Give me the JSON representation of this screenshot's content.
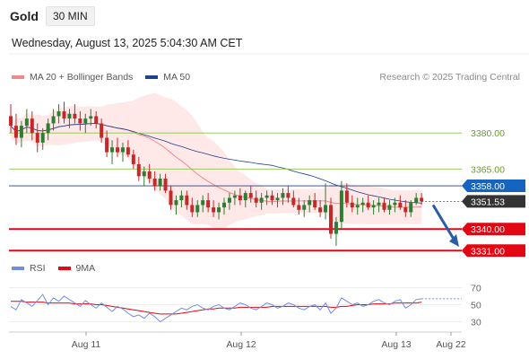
{
  "header": {
    "instrument": "Gold",
    "timeframe": "30 MIN",
    "datetime": "Wednesday, August 13, 2025 5:04:30 AM CET",
    "credit": "Research © 2025 Trading Central"
  },
  "colors": {
    "bull": "#2e7d32",
    "bear": "#c62828",
    "ma20": "#f08a8a",
    "band_fill": "#fde0e0",
    "ma50": "#1f3f8f",
    "resistance": "#8bc34a",
    "pivot": "#1f3f8f",
    "support": "#e30613",
    "last_price_bg": "#333333",
    "pivot_bg": "#1565c0",
    "arrow": "#2a5ca8",
    "rsi": "#6f8fe0",
    "rsi_ma": "#e30613"
  },
  "chart_data": [
    {
      "type": "candlestick",
      "legend": [
        {
          "label": "MA 20 + Bollinger Bands",
          "color": "#f08a8a"
        },
        {
          "label": "MA 50",
          "color": "#1f3f8f"
        }
      ],
      "x_ticks": [
        "Aug 11",
        "Aug 12",
        "Aug 13",
        "Aug 22"
      ],
      "ylim": [
        3327,
        3398
      ],
      "last_price": 3351.53,
      "levels": [
        {
          "label": "3380.00",
          "value": 3380.0,
          "kind": "resistance"
        },
        {
          "label": "3365.00",
          "value": 3365.0,
          "kind": "resistance"
        },
        {
          "label": "3358.00",
          "value": 3358.0,
          "kind": "pivot"
        },
        {
          "label": "3340.00",
          "value": 3340.0,
          "kind": "support"
        },
        {
          "label": "3331.00",
          "value": 3331.0,
          "kind": "support"
        }
      ],
      "last_price_label": "3351.53",
      "forecast": {
        "from": 3351.53,
        "to": 3333.0,
        "direction": "down"
      },
      "ohlc": [
        [
          3387.0,
          3392.0,
          3380.0,
          3383.0
        ],
        [
          3383.0,
          3388.0,
          3375.0,
          3378.0
        ],
        [
          3378.0,
          3385.0,
          3374.0,
          3383.0
        ],
        [
          3383.0,
          3390.0,
          3380.0,
          3386.0
        ],
        [
          3386.0,
          3389.0,
          3377.0,
          3380.0
        ],
        [
          3380.0,
          3384.0,
          3372.0,
          3376.0
        ],
        [
          3376.0,
          3382.0,
          3373.0,
          3380.0
        ],
        [
          3380.0,
          3386.0,
          3377.0,
          3384.0
        ],
        [
          3384.0,
          3390.0,
          3381.0,
          3387.0
        ],
        [
          3387.0,
          3392.0,
          3384.0,
          3389.0
        ],
        [
          3389.0,
          3393.0,
          3384.0,
          3386.0
        ],
        [
          3386.0,
          3390.0,
          3382.0,
          3388.0
        ],
        [
          3388.0,
          3392.0,
          3384.0,
          3386.0
        ],
        [
          3386.0,
          3389.0,
          3381.0,
          3384.0
        ],
        [
          3384.0,
          3388.0,
          3380.0,
          3386.0
        ],
        [
          3386.0,
          3390.0,
          3383.0,
          3387.0
        ],
        [
          3387.0,
          3389.0,
          3382.0,
          3384.0
        ],
        [
          3384.0,
          3386.0,
          3376.0,
          3378.0
        ],
        [
          3378.0,
          3381.0,
          3370.0,
          3372.0
        ],
        [
          3372.0,
          3377.0,
          3367.0,
          3374.0
        ],
        [
          3374.0,
          3378.0,
          3370.0,
          3372.0
        ],
        [
          3372.0,
          3376.0,
          3368.0,
          3374.0
        ],
        [
          3374.0,
          3377.0,
          3370.0,
          3371.0
        ],
        [
          3371.0,
          3373.0,
          3365.0,
          3367.0
        ],
        [
          3367.0,
          3370.0,
          3360.0,
          3362.0
        ],
        [
          3362.0,
          3366.0,
          3358.0,
          3364.0
        ],
        [
          3364.0,
          3367.0,
          3359.0,
          3361.0
        ],
        [
          3361.0,
          3364.0,
          3356.0,
          3358.0
        ],
        [
          3358.0,
          3363.0,
          3356.0,
          3361.0
        ],
        [
          3361.0,
          3363.0,
          3355.0,
          3356.0
        ],
        [
          3356.0,
          3358.0,
          3348.0,
          3350.0
        ],
        [
          3350.0,
          3354.0,
          3346.0,
          3352.0
        ],
        [
          3352.0,
          3356.0,
          3349.0,
          3354.0
        ],
        [
          3354.0,
          3356.0,
          3348.0,
          3350.0
        ],
        [
          3350.0,
          3353.0,
          3345.0,
          3347.0
        ],
        [
          3347.0,
          3352.0,
          3345.0,
          3350.0
        ],
        [
          3350.0,
          3354.0,
          3347.0,
          3352.0
        ],
        [
          3352.0,
          3355.0,
          3347.0,
          3349.0
        ],
        [
          3349.0,
          3352.0,
          3345.0,
          3347.0
        ],
        [
          3347.0,
          3351.0,
          3344.0,
          3349.0
        ],
        [
          3349.0,
          3353.0,
          3346.0,
          3351.0
        ],
        [
          3351.0,
          3355.0,
          3348.0,
          3353.0
        ],
        [
          3353.0,
          3356.0,
          3350.0,
          3354.0
        ],
        [
          3354.0,
          3357.0,
          3350.0,
          3352.0
        ],
        [
          3352.0,
          3356.0,
          3349.0,
          3355.0
        ],
        [
          3355.0,
          3358.0,
          3351.0,
          3353.0
        ],
        [
          3353.0,
          3356.0,
          3349.0,
          3351.0
        ],
        [
          3351.0,
          3355.0,
          3348.0,
          3353.0
        ],
        [
          3353.0,
          3356.0,
          3350.0,
          3354.0
        ],
        [
          3354.0,
          3356.0,
          3350.0,
          3352.0
        ],
        [
          3352.0,
          3355.0,
          3349.0,
          3353.0
        ],
        [
          3353.0,
          3357.0,
          3350.0,
          3355.0
        ],
        [
          3355.0,
          3358.0,
          3351.0,
          3353.0
        ],
        [
          3353.0,
          3356.0,
          3349.0,
          3350.0
        ],
        [
          3350.0,
          3353.0,
          3346.0,
          3348.0
        ],
        [
          3348.0,
          3352.0,
          3345.0,
          3350.0
        ],
        [
          3350.0,
          3354.0,
          3347.0,
          3352.0
        ],
        [
          3352.0,
          3355.0,
          3348.0,
          3349.0
        ],
        [
          3349.0,
          3352.0,
          3345.0,
          3347.0
        ],
        [
          3347.0,
          3359.0,
          3344.0,
          3350.0
        ],
        [
          3350.0,
          3353.0,
          3336.0,
          3338.0
        ],
        [
          3338.0,
          3345.0,
          3333.0,
          3343.0
        ],
        [
          3343.0,
          3360.0,
          3340.0,
          3356.0
        ],
        [
          3356.0,
          3359.0,
          3349.0,
          3351.0
        ],
        [
          3351.0,
          3354.0,
          3347.0,
          3349.0
        ],
        [
          3349.0,
          3353.0,
          3346.0,
          3350.0
        ],
        [
          3350.0,
          3353.0,
          3347.0,
          3351.0
        ],
        [
          3351.0,
          3354.0,
          3348.0,
          3349.0
        ],
        [
          3349.0,
          3352.0,
          3346.0,
          3350.0
        ],
        [
          3350.0,
          3353.0,
          3347.0,
          3351.0
        ],
        [
          3351.0,
          3353.0,
          3347.0,
          3348.0
        ],
        [
          3348.0,
          3352.0,
          3346.0,
          3350.0
        ],
        [
          3350.0,
          3353.0,
          3347.0,
          3351.0
        ],
        [
          3351.0,
          3354.0,
          3348.0,
          3349.0
        ],
        [
          3349.0,
          3352.0,
          3345.0,
          3347.0
        ],
        [
          3347.0,
          3352.0,
          3345.0,
          3351.0
        ],
        [
          3351.0,
          3355.0,
          3350.0,
          3353.0
        ],
        [
          3353.0,
          3355.0,
          3350.0,
          3351.53
        ]
      ]
    },
    {
      "type": "line",
      "legend": [
        {
          "label": "RSI",
          "color": "#6f8fe0"
        },
        {
          "label": "9MA",
          "color": "#e30613"
        }
      ],
      "yticks": [
        70,
        50,
        30
      ],
      "ylim": [
        20,
        80
      ],
      "series": [
        {
          "name": "RSI",
          "values": [
            48,
            44,
            56,
            52,
            48,
            55,
            62,
            50,
            58,
            54,
            60,
            56,
            52,
            48,
            55,
            50,
            46,
            52,
            47,
            42,
            48,
            45,
            40,
            36,
            38,
            34,
            40,
            36,
            30,
            34,
            38,
            42,
            46,
            44,
            48,
            50,
            46,
            44,
            48,
            50,
            46,
            44,
            48,
            52,
            50,
            46,
            44,
            48,
            52,
            50,
            46,
            48,
            52,
            50,
            46,
            44,
            48,
            50,
            44,
            52,
            40,
            46,
            58,
            54,
            50,
            52,
            48,
            50,
            54,
            56,
            52,
            50,
            54,
            56,
            46,
            50,
            56,
            57
          ]
        },
        {
          "name": "9MA",
          "values": [
            54,
            54,
            54,
            53,
            53,
            53,
            53,
            52,
            52,
            52,
            52,
            52,
            51,
            51,
            51,
            51,
            50,
            50,
            49,
            48,
            47,
            46,
            45,
            44,
            43,
            42,
            41,
            40,
            39,
            39,
            39,
            39,
            40,
            41,
            42,
            43,
            44,
            45,
            45,
            46,
            46,
            46,
            46,
            47,
            47,
            47,
            47,
            47,
            47,
            48,
            48,
            48,
            48,
            48,
            48,
            48,
            48,
            48,
            48,
            48,
            47,
            47,
            48,
            48,
            49,
            50,
            50,
            50,
            51,
            51,
            51,
            51,
            52,
            52,
            52,
            52,
            52,
            53
          ]
        }
      ],
      "forecast_value": 57
    }
  ]
}
